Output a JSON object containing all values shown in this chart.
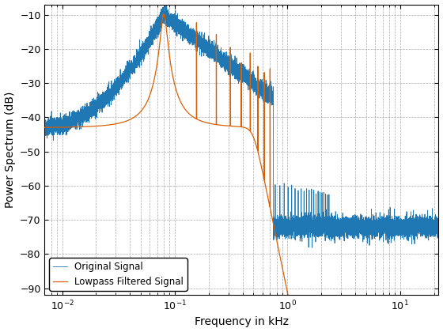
{
  "xlabel": "Frequency in kHz",
  "ylabel": "Power Spectrum (dB)",
  "xlim": [
    0.007,
    22
  ],
  "ylim": [
    -92,
    -7
  ],
  "yticks": [
    -90,
    -80,
    -70,
    -60,
    -50,
    -40,
    -30,
    -20,
    -10
  ],
  "legend_labels": [
    "Original Signal",
    "Lowpass Filtered Signal"
  ],
  "line_colors": [
    "#1f77b4",
    "#d95f02"
  ],
  "background_color": "#ffffff",
  "grid_color": "#aaaaaa",
  "figsize": [
    5.6,
    4.2
  ],
  "dpi": 100,
  "legend_loc": "lower left",
  "seed": 42,
  "noise_floor": -72,
  "base_level": -43,
  "cutoff_kHz": 0.5,
  "resonance_freq": 0.08,
  "resonance_peak": -10,
  "filter_order": 8
}
